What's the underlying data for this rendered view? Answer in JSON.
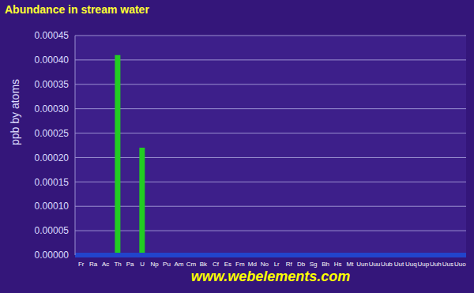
{
  "chart_data": {
    "type": "bar",
    "title": "Abundance in stream water",
    "ylabel": "ppb by atoms",
    "annotations": [
      "www.webelements.com"
    ],
    "categories": [
      "Fr",
      "Ra",
      "Ac",
      "Th",
      "Pa",
      "U",
      "Np",
      "Pu",
      "Am",
      "Cm",
      "Bk",
      "Cf",
      "Es",
      "Fm",
      "Md",
      "No",
      "Lr",
      "Rf",
      "Db",
      "Sg",
      "Bh",
      "Hs",
      "Mt",
      "Uun",
      "Uuu",
      "Uub",
      "Uut",
      "Uuq",
      "Uup",
      "Uuh",
      "Uus",
      "Uuo"
    ],
    "values": [
      null,
      null,
      null,
      0.00041,
      null,
      0.00022,
      null,
      null,
      null,
      null,
      null,
      null,
      null,
      null,
      null,
      null,
      null,
      null,
      null,
      null,
      null,
      null,
      null,
      null,
      null,
      null,
      null,
      null,
      null,
      null,
      null,
      null
    ],
    "color": "#22cc22",
    "ylim": [
      0,
      0.00045
    ],
    "yticks": [
      {
        "value": 0,
        "label": "0.00000"
      },
      {
        "value": 5e-05,
        "label": "0.00005"
      },
      {
        "value": 0.0001,
        "label": "0.00010"
      },
      {
        "value": 0.00015,
        "label": "0.00015"
      },
      {
        "value": 0.0002,
        "label": "0.00020"
      },
      {
        "value": 0.00025,
        "label": "0.00025"
      },
      {
        "value": 0.0003,
        "label": "0.00030"
      },
      {
        "value": 0.00035,
        "label": "0.00035"
      },
      {
        "value": 0.0004,
        "label": "0.00040"
      },
      {
        "value": 0.00045,
        "label": "0.00045"
      }
    ],
    "grid": true
  }
}
